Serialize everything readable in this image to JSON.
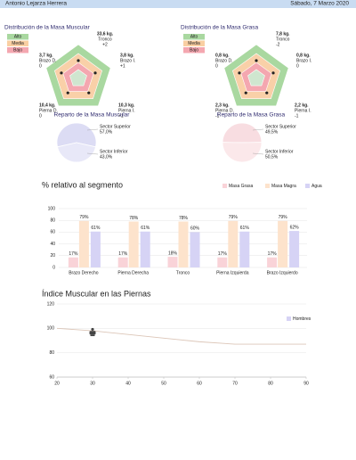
{
  "header": {
    "name": "Antonio Lejarza Herrera",
    "date": "Sábado, 7 Marzo 2020"
  },
  "distributions": [
    {
      "title": "Distribución de la Masa Muscular",
      "legend": [
        "Alto",
        "Media",
        "Bajo"
      ],
      "segments": [
        {
          "mass": "33,6 kg.",
          "name": "Tronco",
          "level": "+2"
        },
        {
          "mass": "3,7 kg.",
          "name": "Brazo D.",
          "level": "0"
        },
        {
          "mass": "3,8 kg.",
          "name": "Brazo I.",
          "level": "+1"
        },
        {
          "mass": "10,4 kg.",
          "name": "Pierna D.",
          "level": "0"
        },
        {
          "mass": "10,3 kg.",
          "name": "Pierna I.",
          "level": "+1"
        }
      ]
    },
    {
      "title": "Distribución de la Masa Grasa",
      "legend": [
        "Alto",
        "Media",
        "Bajo"
      ],
      "segments": [
        {
          "mass": "7,8 kg.",
          "name": "Tronco",
          "level": "-2"
        },
        {
          "mass": "0,8 kg.",
          "name": "Brazo D.",
          "level": "0"
        },
        {
          "mass": "0,8 kg.",
          "name": "Brazo I.",
          "level": "0"
        },
        {
          "mass": "2,3 kg.",
          "name": "Pierna D.",
          "level": "-1"
        },
        {
          "mass": "2,2 kg.",
          "name": "Pierna I.",
          "level": "-1"
        }
      ]
    }
  ],
  "chart_data": [
    {
      "type": "pie",
      "title": "Reparto de la Masa Muscular",
      "categories": [
        "Sector Superior",
        "Sector Inferior"
      ],
      "values": [
        57.0,
        43.0
      ],
      "value_labels": [
        "57,0%",
        "43,0%"
      ],
      "colors": [
        "#dcdcf4",
        "#e8e8f8"
      ]
    },
    {
      "type": "pie",
      "title": "Reparto de la Masa Grasa",
      "categories": [
        "Sector Superior",
        "Sector Inferior"
      ],
      "values": [
        49.5,
        50.5
      ],
      "value_labels": [
        "49,5%",
        "50,5%"
      ],
      "colors": [
        "#f8dde1",
        "#fbe8ea"
      ]
    },
    {
      "type": "bar",
      "title": "% relativo al segmento",
      "categories": [
        "Brazo Derecho",
        "Pierna Derecha",
        "Tronco",
        "Pierna Izquierda",
        "Brazo Izquierdo"
      ],
      "series": [
        {
          "name": "Masa Grasa",
          "color": "#f9d3d8",
          "values": [
            17,
            17,
            18,
            17,
            17
          ],
          "value_labels": [
            "17%",
            "17%",
            "18%",
            "17%",
            "17%"
          ]
        },
        {
          "name": "Masa Magra",
          "color": "#fde3cc",
          "values": [
            79,
            78,
            78,
            79,
            79
          ],
          "value_labels": [
            "79%",
            "78%",
            "78%",
            "79%",
            "79%"
          ]
        },
        {
          "name": "Agua",
          "color": "#d6d3f5",
          "values": [
            61,
            61,
            60,
            61,
            62
          ],
          "value_labels": [
            "61%",
            "61%",
            "60%",
            "61%",
            "62%"
          ]
        }
      ],
      "ylim": [
        0,
        100
      ],
      "yticks": [
        0,
        20,
        40,
        60,
        80,
        100
      ],
      "legend": "top-right"
    },
    {
      "type": "line",
      "title": "Índice Muscular en las Piernas",
      "x": [
        20,
        30,
        40,
        50,
        60,
        70,
        80,
        90
      ],
      "series": [
        {
          "name": "Hombres",
          "color": "#d6d3f5",
          "line_color": "#dcc6b8",
          "values": [
            100,
            98,
            95,
            92,
            89,
            87,
            87,
            87
          ]
        }
      ],
      "marker": {
        "x": 30,
        "y": 97
      },
      "xlim": [
        20,
        90
      ],
      "xticks": [
        20,
        30,
        40,
        50,
        60,
        70,
        80,
        90
      ],
      "ylim": [
        60,
        120
      ],
      "yticks": [
        60,
        80,
        100,
        120
      ],
      "grid": true,
      "legend": "top-right"
    }
  ]
}
